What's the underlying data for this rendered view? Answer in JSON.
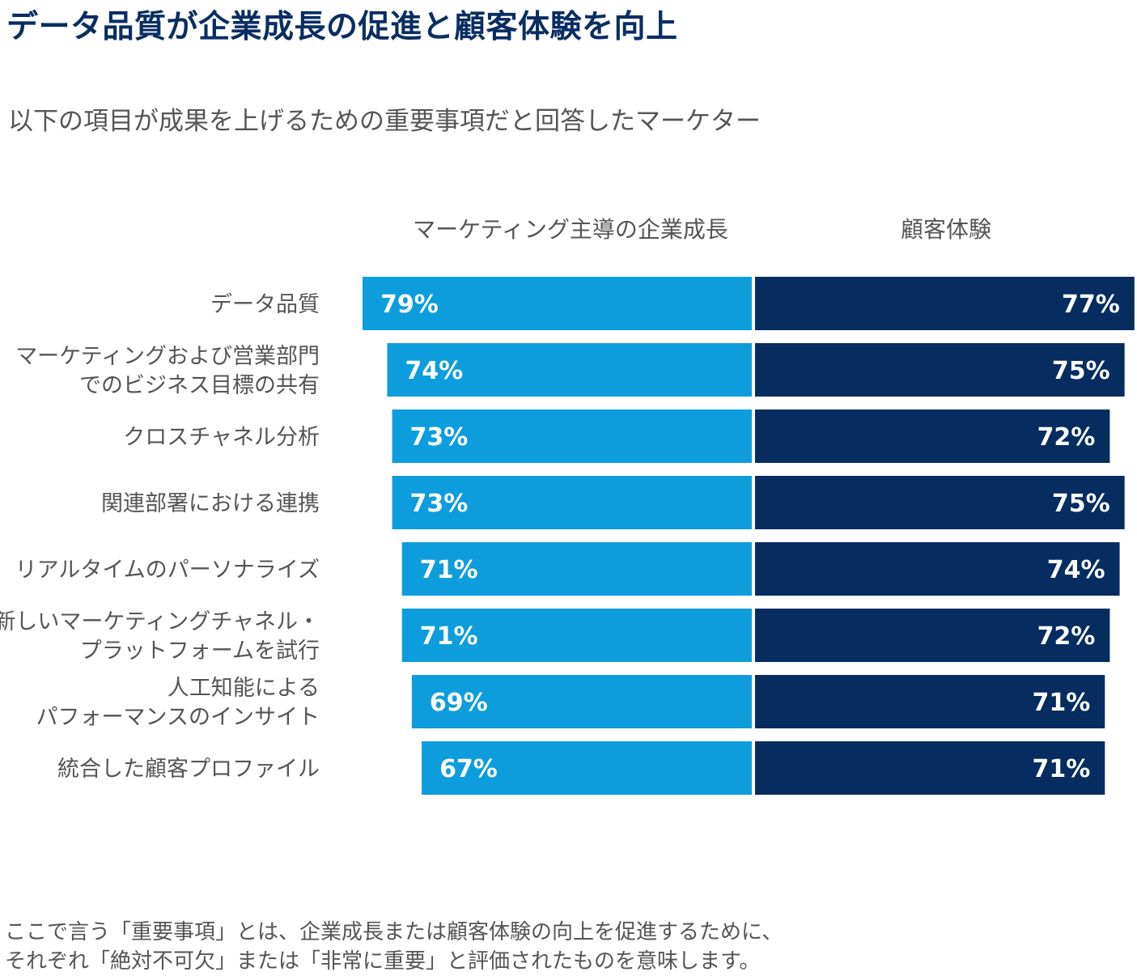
{
  "title": "データ品質が企業成長の促進と顧客体験を向上",
  "subtitle": "以下の項目が成果を上げるための重要事項だと回答したマーケター",
  "colors": {
    "series1": "#0d9ddc",
    "series2": "#062c60",
    "title": "#0b2d63",
    "text": "#555555",
    "label": "#ffffff"
  },
  "chart_data": {
    "type": "bar",
    "layout": "back-to-back horizontal",
    "value_format": "{v}%",
    "categories": [
      [
        "データ品質"
      ],
      [
        "マーケティングおよび営業部門",
        "でのビジネス目標の共有"
      ],
      [
        "クロスチャネル分析"
      ],
      [
        "関連部署における連携"
      ],
      [
        "リアルタイムのパーソナライズ"
      ],
      [
        "新しいマーケティングチャネル・",
        "プラットフォームを試行"
      ],
      [
        "人工知能による",
        "パフォーマンスのインサイト"
      ],
      [
        "統合した顧客プロファイル"
      ]
    ],
    "series": [
      {
        "name": "マーケティング主導の企業成長",
        "direction": "left",
        "values": [
          79,
          74,
          73,
          73,
          71,
          71,
          69,
          67
        ]
      },
      {
        "name": "顧客体験",
        "direction": "right",
        "values": [
          77,
          75,
          72,
          75,
          74,
          72,
          71,
          71
        ]
      }
    ],
    "xlim": [
      0,
      79
    ]
  },
  "footnote": [
    "ここで言う「重要事項」とは、企業成長または顧客体験の向上を促進するために、",
    "それぞれ「絶対不可欠」または「非常に重要」と評価されたものを意味します。"
  ]
}
